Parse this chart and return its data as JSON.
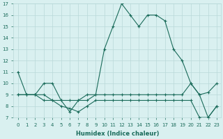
{
  "line1_x": [
    0,
    1,
    2,
    3,
    4,
    5,
    6,
    7,
    8,
    9,
    10,
    11,
    12,
    13,
    14,
    15,
    16,
    17,
    18,
    19,
    20,
    21,
    22,
    23
  ],
  "line1_y": [
    11,
    9,
    9,
    10,
    10,
    8.5,
    7.5,
    8.5,
    9,
    9,
    13,
    15,
    17,
    16,
    15,
    16,
    16,
    15.5,
    13,
    12,
    10,
    9,
    9.2,
    10
  ],
  "line2_x": [
    0,
    1,
    2,
    3,
    4,
    5,
    6,
    7,
    8,
    9,
    10,
    11,
    12,
    13,
    14,
    15,
    16,
    17,
    18,
    19,
    20,
    21,
    22,
    23
  ],
  "line2_y": [
    9,
    9,
    9,
    9,
    8.5,
    8.5,
    8.5,
    8.5,
    8.5,
    9,
    9,
    9,
    9,
    9,
    9,
    9,
    9,
    9,
    9,
    9,
    10,
    9,
    7,
    8
  ],
  "line3_x": [
    0,
    1,
    2,
    3,
    4,
    5,
    6,
    7,
    8,
    9,
    10,
    11,
    12,
    13,
    14,
    15,
    16,
    17,
    18,
    19,
    20,
    21,
    22,
    23
  ],
  "line3_y": [
    9,
    9,
    9,
    8.5,
    8.5,
    8,
    7.8,
    7.5,
    8,
    8.5,
    8.5,
    8.5,
    8.5,
    8.5,
    8.5,
    8.5,
    8.5,
    8.5,
    8.5,
    8.5,
    8.5,
    7,
    7,
    8
  ],
  "line_color": "#1a6b5a",
  "bg_color": "#d9f0f0",
  "grid_color": "#b8d8d8",
  "xlabel": "Humidex (Indice chaleur)",
  "ylim": [
    7,
    17
  ],
  "xlim": [
    -0.5,
    23.5
  ],
  "yticks": [
    7,
    8,
    9,
    10,
    11,
    12,
    13,
    14,
    15,
    16,
    17
  ],
  "xticks": [
    0,
    1,
    2,
    3,
    4,
    5,
    6,
    7,
    8,
    9,
    10,
    11,
    12,
    13,
    14,
    15,
    16,
    17,
    18,
    19,
    20,
    21,
    22,
    23
  ],
  "tick_fontsize": 5.0,
  "xlabel_fontsize": 6.0
}
